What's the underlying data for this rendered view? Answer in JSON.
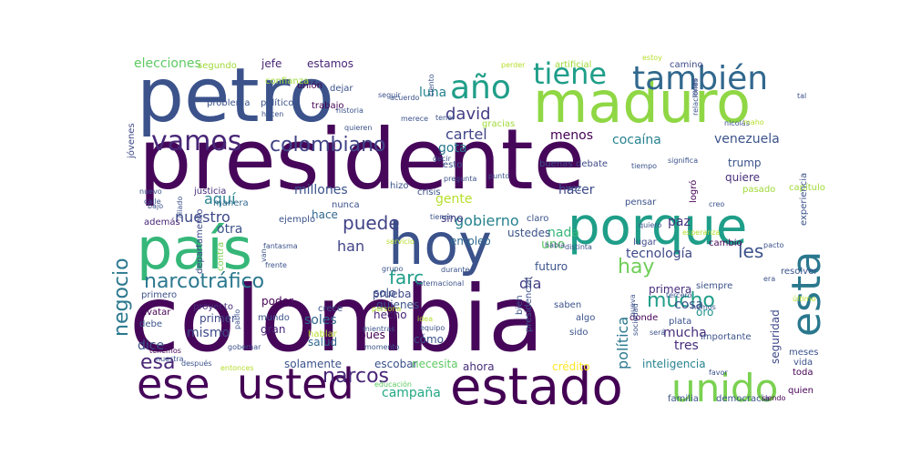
{
  "cloud": {
    "words": [
      {
        "text": "presidente",
        "color": "#46075a"
      },
      {
        "text": "colombia",
        "color": "#46075a"
      },
      {
        "text": "petro",
        "color": "#3b528b"
      },
      {
        "text": "maduro",
        "color": "#8fd744"
      },
      {
        "text": "país",
        "color": "#35b779"
      },
      {
        "text": "hoy",
        "color": "#3b528b"
      },
      {
        "text": "porque",
        "color": "#1f9e89"
      },
      {
        "text": "estado",
        "color": "#440154"
      },
      {
        "text": "usted",
        "color": "#440154"
      },
      {
        "text": "ese",
        "color": "#46075a"
      },
      {
        "text": "unido",
        "color": "#7ad151"
      },
      {
        "text": "esta",
        "color": "#2a788e"
      },
      {
        "text": "también",
        "color": "#31688e"
      },
      {
        "text": "año",
        "color": "#1f9e89"
      },
      {
        "text": "tiene",
        "color": "#1f9e89"
      },
      {
        "text": "vamos",
        "color": "#482677"
      },
      {
        "text": "colombiano",
        "color": "#414487"
      },
      {
        "text": "narcotráfico",
        "color": "#2a788e"
      },
      {
        "text": "narcos",
        "color": "#482677"
      },
      {
        "text": "esa",
        "color": "#482677"
      },
      {
        "text": "mucho",
        "color": "#1f9e89"
      },
      {
        "text": "hay",
        "color": "#6ece58"
      },
      {
        "text": "negocio",
        "color": "#2a788e"
      },
      {
        "text": "puede",
        "color": "#414487"
      },
      {
        "text": "farc",
        "color": "#1f9e89"
      },
      {
        "text": "venezuela",
        "color": "#3b528b"
      },
      {
        "text": "david",
        "color": "#433e85"
      },
      {
        "text": "luna",
        "color": "#26828e"
      },
      {
        "text": "cartel",
        "color": "#414487"
      },
      {
        "text": "cocaína",
        "color": "#26828e"
      },
      {
        "text": "gobierno",
        "color": "#26828e"
      },
      {
        "text": "han",
        "color": "#414487"
      },
      {
        "text": "aquí",
        "color": "#26828e"
      },
      {
        "text": "les",
        "color": "#3b528b"
      },
      {
        "text": "tecnología",
        "color": "#3e4989"
      },
      {
        "text": "política",
        "color": "#2a788e"
      },
      {
        "text": "día",
        "color": "#433e85"
      },
      {
        "text": "cosa",
        "color": "#3b528b"
      },
      {
        "text": "nuestro",
        "color": "#3e4989"
      },
      {
        "text": "menos",
        "color": "#440154"
      },
      {
        "text": "hacer",
        "color": "#3e4989"
      },
      {
        "text": "gota",
        "color": "#2a788e"
      },
      {
        "text": "elecciones",
        "color": "#5ec962"
      },
      {
        "text": "jefe",
        "color": "#482677"
      },
      {
        "text": "estamos",
        "color": "#482677"
      },
      {
        "text": "millones",
        "color": "#3b528b"
      },
      {
        "text": "gente",
        "color": "#b5de2b"
      },
      {
        "text": "nada",
        "color": "#35b779"
      },
      {
        "text": "uno",
        "color": "#5ec962"
      },
      {
        "text": "otra",
        "color": "#3b528b"
      },
      {
        "text": "dice",
        "color": "#3b528b"
      },
      {
        "text": "mismo",
        "color": "#3e4989"
      },
      {
        "text": "soles",
        "color": "#31688e"
      },
      {
        "text": "gran",
        "color": "#482677"
      },
      {
        "text": "hecho",
        "color": "#482677"
      },
      {
        "text": "campaña",
        "color": "#22a884"
      },
      {
        "text": "escobar",
        "color": "#3b528b"
      },
      {
        "text": "ahora",
        "color": "#472d7b"
      },
      {
        "text": "crédito",
        "color": "#fde725"
      },
      {
        "text": "necesita",
        "color": "#5ec962"
      },
      {
        "text": "solamente",
        "color": "#3b528b"
      },
      {
        "text": "inteligencia",
        "color": "#26828e"
      },
      {
        "text": "mucha",
        "color": "#472d7b"
      },
      {
        "text": "tres",
        "color": "#472d7b"
      },
      {
        "text": "seguridad",
        "color": "#3e4989"
      },
      {
        "text": "paz",
        "color": "#46337e"
      },
      {
        "text": "trump",
        "color": "#3b528b"
      },
      {
        "text": "quiere",
        "color": "#472d7b"
      },
      {
        "text": "sino",
        "color": "#433e85"
      },
      {
        "text": "ustedes",
        "color": "#3b528b"
      },
      {
        "text": "empleo",
        "color": "#31688e"
      },
      {
        "text": "hace",
        "color": "#31688e"
      },
      {
        "text": "solo",
        "color": "#3b528b"
      },
      {
        "text": "quienes",
        "color": "#3b528b"
      },
      {
        "text": "primera",
        "color": "#472d7b"
      },
      {
        "text": "primer",
        "color": "#3e4989"
      },
      {
        "text": "poder",
        "color": "#440154"
      },
      {
        "text": "mundo",
        "color": "#3b528b"
      },
      {
        "text": "oro",
        "color": "#21918c"
      },
      {
        "text": "pues",
        "color": "#440154"
      },
      {
        "text": "cómo",
        "color": "#3b528b"
      },
      {
        "text": "salud",
        "color": "#31688e"
      },
      {
        "text": "prueba",
        "color": "#3e4989"
      },
      {
        "text": "esto",
        "color": "#3b528b"
      },
      {
        "text": "futuro",
        "color": "#3b528b"
      },
      {
        "text": "dejar",
        "color": "#3b528b"
      },
      {
        "text": "unión",
        "color": "#440154"
      },
      {
        "text": "trabajo",
        "color": "#440154"
      },
      {
        "text": "segundo",
        "color": "#a0da39"
      },
      {
        "text": "artificial",
        "color": "#a0da39"
      },
      {
        "text": "camino",
        "color": "#3e4989"
      },
      {
        "text": "gracias",
        "color": "#a0da39"
      },
      {
        "text": "buenas",
        "color": "#3e4989"
      },
      {
        "text": "debate",
        "color": "#3e4989"
      },
      {
        "text": "jóvenes",
        "color": "#3e4989"
      },
      {
        "text": "justicia",
        "color": "#472d7b"
      },
      {
        "text": "manera",
        "color": "#31688e"
      },
      {
        "text": "departamento",
        "color": "#3e4989"
      },
      {
        "text": "además",
        "color": "#482677"
      },
      {
        "text": "ejemplo",
        "color": "#3b528b"
      },
      {
        "text": "contra",
        "color": "#7ad151"
      },
      {
        "text": "primero",
        "color": "#3b528b"
      },
      {
        "text": "avatar",
        "color": "#440154"
      },
      {
        "text": "debe",
        "color": "#3b528b"
      },
      {
        "text": "proyecto",
        "color": "#472d7b"
      },
      {
        "text": "crece",
        "color": "#3b528b"
      },
      {
        "text": "siempre",
        "color": "#3b528b"
      },
      {
        "text": "donde",
        "color": "#440154"
      },
      {
        "text": "saben",
        "color": "#3b528b"
      },
      {
        "text": "algo",
        "color": "#3b528b"
      },
      {
        "text": "plata",
        "color": "#3b528b"
      },
      {
        "text": "sido",
        "color": "#3b528b"
      },
      {
        "text": "presidencial",
        "color": "#3b528b"
      },
      {
        "text": "bien",
        "color": "#3b528b"
      },
      {
        "text": "lugar",
        "color": "#3e4989"
      },
      {
        "text": "claro",
        "color": "#3b528b"
      },
      {
        "text": "cambio",
        "color": "#440154"
      },
      {
        "text": "capítulo",
        "color": "#a0da39"
      },
      {
        "text": "pasado",
        "color": "#a0da39"
      },
      {
        "text": "resolver",
        "color": "#3b528b"
      },
      {
        "text": "experiencia",
        "color": "#3b528b"
      },
      {
        "text": "toda",
        "color": "#440154"
      },
      {
        "text": "quien",
        "color": "#440154"
      },
      {
        "text": "meses",
        "color": "#3b528b"
      },
      {
        "text": "vida",
        "color": "#3b528b"
      },
      {
        "text": "nicolás",
        "color": "#3b528b"
      },
      {
        "text": "tal",
        "color": "#3b528b"
      },
      {
        "text": "maho",
        "color": "#b5de2b"
      },
      {
        "text": "vez",
        "color": "#3b528b"
      },
      {
        "text": "tiempo",
        "color": "#3b528b"
      },
      {
        "text": "pensar",
        "color": "#3b528b"
      },
      {
        "text": "logró",
        "color": "#440154"
      },
      {
        "text": "importante",
        "color": "#3b528b"
      },
      {
        "text": "familia",
        "color": "#3b528b"
      },
      {
        "text": "democracia",
        "color": "#3b528b"
      },
      {
        "text": "siendo",
        "color": "#440154"
      },
      {
        "text": "mientras",
        "color": "#3b528b"
      },
      {
        "text": "hablar",
        "color": "#b5de2b"
      },
      {
        "text": "momento",
        "color": "#3b528b"
      },
      {
        "text": "gobernar",
        "color": "#3b528b"
      },
      {
        "text": "educación",
        "color": "#5ec962"
      },
      {
        "text": "después",
        "color": "#3b528b"
      },
      {
        "text": "entonces",
        "color": "#b5de2b"
      },
      {
        "text": "tenemos",
        "color": "#440154"
      },
      {
        "text": "nuestra",
        "color": "#3b528b"
      },
      {
        "text": "pablo",
        "color": "#3b528b"
      },
      {
        "text": "crisis",
        "color": "#3b528b"
      },
      {
        "text": "hizo",
        "color": "#3b528b"
      },
      {
        "text": "nunca",
        "color": "#3b528b"
      },
      {
        "text": "merece",
        "color": "#3b528b"
      },
      {
        "text": "historia",
        "color": "#3b528b"
      },
      {
        "text": "problema",
        "color": "#3b528b"
      },
      {
        "text": "político",
        "color": "#3b528b"
      },
      {
        "text": "hacen",
        "color": "#3b528b"
      },
      {
        "text": "confianza",
        "color": "#a0da39"
      },
      {
        "text": "seguir",
        "color": "#3b528b"
      },
      {
        "text": "perder",
        "color": "#b5de2b"
      },
      {
        "text": "estoy",
        "color": "#b5de2b"
      },
      {
        "text": "acuerdo",
        "color": "#3b528b"
      },
      {
        "text": "ciento",
        "color": "#3b528b"
      },
      {
        "text": "tener",
        "color": "#3b528b"
      },
      {
        "text": "quieren",
        "color": "#3b528b"
      },
      {
        "text": "decir",
        "color": "#3b528b"
      },
      {
        "text": "pregunta",
        "color": "#3b528b"
      },
      {
        "text": "punto",
        "color": "#3b528b"
      },
      {
        "text": "nuevo",
        "color": "#3b528b"
      },
      {
        "text": "calle",
        "color": "#3b528b"
      },
      {
        "text": "bajo",
        "color": "#3b528b"
      },
      {
        "text": "aliado",
        "color": "#3b528b"
      },
      {
        "text": "van",
        "color": "#3b528b"
      },
      {
        "text": "fantasma",
        "color": "#3b528b"
      },
      {
        "text": "frente",
        "color": "#3b528b"
      },
      {
        "text": "grupo",
        "color": "#3b528b"
      },
      {
        "text": "durante",
        "color": "#3b528b"
      },
      {
        "text": "persona",
        "color": "#b5de2b"
      },
      {
        "text": "idea",
        "color": "#b5de2b"
      },
      {
        "text": "equipo",
        "color": "#3b528b"
      },
      {
        "text": "había",
        "color": "#3b528b"
      },
      {
        "text": "distinta",
        "color": "#3b528b"
      },
      {
        "text": "quiero",
        "color": "#3b528b"
      },
      {
        "text": "esperanza",
        "color": "#b5de2b"
      },
      {
        "text": "pacto",
        "color": "#3b528b"
      },
      {
        "text": "era",
        "color": "#3b528b"
      },
      {
        "text": "creo",
        "color": "#3b528b"
      },
      {
        "text": "significa",
        "color": "#3b528b"
      },
      {
        "text": "hemos",
        "color": "#3b528b"
      },
      {
        "text": "último",
        "color": "#b5de2b"
      },
      {
        "text": "tercero",
        "color": "#3b528b"
      },
      {
        "text": "nueva",
        "color": "#3b528b"
      },
      {
        "text": "sociedad",
        "color": "#3b528b"
      },
      {
        "text": "será",
        "color": "#3b528b"
      },
      {
        "text": "favor",
        "color": "#3b528b"
      },
      {
        "text": "miles",
        "color": "#3b528b"
      },
      {
        "text": "relaciones",
        "color": "#3b528b"
      },
      {
        "text": "internacional",
        "color": "#3b528b"
      },
      {
        "text": "tienen",
        "color": "#3b528b"
      },
      {
        "text": "servicio",
        "color": "#b5de2b"
      },
      {
        "text": "ante",
        "color": "#3b528b"
      },
      {
        "text": "maquetia",
        "color": "#b5de2b"
      }
    ]
  }
}
